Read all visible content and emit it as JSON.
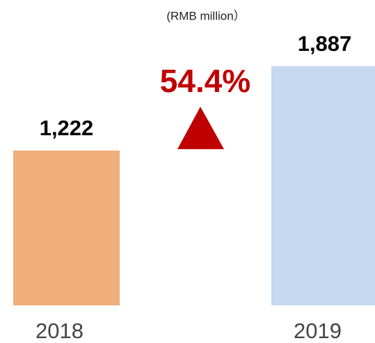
{
  "chart_data": {
    "type": "bar",
    "subtitle": "(RMB million）",
    "categories": [
      "2018",
      "2019"
    ],
    "values": [
      1222,
      1887
    ],
    "value_labels": [
      "1,222",
      "1,887"
    ],
    "colors": [
      "#f0ae7a",
      "#c5d8ef"
    ],
    "annotation": "54.4%"
  }
}
